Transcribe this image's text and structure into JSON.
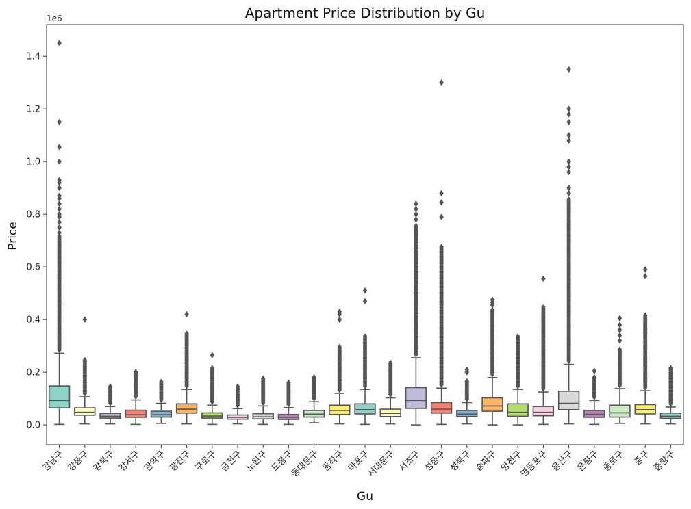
{
  "chart_data": {
    "type": "box",
    "title": "Apartment Price Distribution by Gu",
    "xlabel": "Gu",
    "ylabel": "Price",
    "y_offset_label": "1e6",
    "ylim": [
      -75000,
      1520000
    ],
    "yticks": [
      0,
      200000,
      400000,
      600000,
      800000,
      1000000,
      1200000,
      1400000
    ],
    "ytick_labels": [
      "0.0",
      "0.2",
      "0.4",
      "0.6",
      "0.8",
      "1.0",
      "1.2",
      "1.4"
    ],
    "grid": false,
    "categories": [
      "강남구",
      "강동구",
      "강북구",
      "강서구",
      "관악구",
      "광진구",
      "구로구",
      "금천구",
      "노원구",
      "도봉구",
      "동대문구",
      "동작구",
      "마포구",
      "서대문구",
      "서초구",
      "성동구",
      "성북구",
      "송파구",
      "양천구",
      "영등포구",
      "용산구",
      "은평구",
      "종로구",
      "중구",
      "중랑구"
    ],
    "series": [
      {
        "name": "강남구",
        "color": "#8dd3c7",
        "q1": 65000,
        "median": 93000,
        "q3": 148000,
        "whisker_low": 2000,
        "whisker_high": 272000,
        "outlier_range": [
          272000,
          720000
        ],
        "outliers": [
          730000,
          750000,
          770000,
          790000,
          800000,
          820000,
          840000,
          860000,
          870000,
          900000,
          920000,
          930000,
          1000000,
          1055000,
          1150000,
          1450000
        ]
      },
      {
        "name": "강동구",
        "color": "#ffffb3",
        "q1": 37000,
        "median": 48000,
        "q3": 65000,
        "whisker_low": 4000,
        "whisker_high": 107000,
        "outlier_range": [
          107000,
          250000
        ],
        "outliers": [
          400000
        ]
      },
      {
        "name": "강북구",
        "color": "#bebada",
        "q1": 26000,
        "median": 33000,
        "q3": 44000,
        "whisker_low": 4000,
        "whisker_high": 70000,
        "outlier_range": [
          70000,
          150000
        ],
        "outliers": []
      },
      {
        "name": "강서구",
        "color": "#fb8072",
        "q1": 29000,
        "median": 39000,
        "q3": 56000,
        "whisker_low": 2000,
        "whisker_high": 95000,
        "outlier_range": [
          95000,
          205000
        ],
        "outliers": []
      },
      {
        "name": "관악구",
        "color": "#80b1d3",
        "q1": 30000,
        "median": 39000,
        "q3": 52000,
        "whisker_low": 6000,
        "whisker_high": 82000,
        "outlier_range": [
          82000,
          168000
        ],
        "outliers": []
      },
      {
        "name": "광진구",
        "color": "#fdb462",
        "q1": 45000,
        "median": 60000,
        "q3": 80000,
        "whisker_low": 4000,
        "whisker_high": 135000,
        "outlier_range": [
          135000,
          350000
        ],
        "outliers": [
          420000
        ]
      },
      {
        "name": "구로구",
        "color": "#b3de69",
        "q1": 26000,
        "median": 34000,
        "q3": 46000,
        "whisker_low": 2000,
        "whisker_high": 75000,
        "outlier_range": [
          75000,
          220000
        ],
        "outliers": [
          265000
        ]
      },
      {
        "name": "금천구",
        "color": "#fccde5",
        "q1": 22000,
        "median": 29000,
        "q3": 38000,
        "whisker_low": 4000,
        "whisker_high": 62000,
        "outlier_range": [
          62000,
          150000
        ],
        "outliers": []
      },
      {
        "name": "노원구",
        "color": "#d9d9d9",
        "q1": 23000,
        "median": 31000,
        "q3": 43000,
        "whisker_low": 2000,
        "whisker_high": 72000,
        "outlier_range": [
          72000,
          180000
        ],
        "outliers": []
      },
      {
        "name": "도봉구",
        "color": "#bc80bd",
        "q1": 21000,
        "median": 29000,
        "q3": 40000,
        "whisker_low": 2000,
        "whisker_high": 66000,
        "outlier_range": [
          66000,
          165000
        ],
        "outliers": []
      },
      {
        "name": "동대문구",
        "color": "#ccebc5",
        "q1": 30000,
        "median": 41000,
        "q3": 55000,
        "whisker_low": 8000,
        "whisker_high": 88000,
        "outlier_range": [
          88000,
          185000
        ],
        "outliers": []
      },
      {
        "name": "동작구",
        "color": "#ffed6f",
        "q1": 40000,
        "median": 55000,
        "q3": 75000,
        "whisker_low": 4000,
        "whisker_high": 120000,
        "outlier_range": [
          120000,
          300000
        ],
        "outliers": [
          400000,
          420000,
          430000
        ]
      },
      {
        "name": "마포구",
        "color": "#8dd3c7",
        "q1": 42000,
        "median": 58000,
        "q3": 80000,
        "whisker_low": 2000,
        "whisker_high": 135000,
        "outlier_range": [
          135000,
          340000
        ],
        "outliers": [
          470000,
          510000
        ]
      },
      {
        "name": "서대문구",
        "color": "#ffffb3",
        "q1": 32000,
        "median": 44000,
        "q3": 60000,
        "whisker_low": 4000,
        "whisker_high": 103000,
        "outlier_range": [
          103000,
          240000
        ],
        "outliers": []
      },
      {
        "name": "서초구",
        "color": "#bebada",
        "q1": 63000,
        "median": 93000,
        "q3": 142000,
        "whisker_low": 0,
        "whisker_high": 255000,
        "outlier_range": [
          255000,
          760000
        ],
        "outliers": [
          780000,
          800000,
          820000,
          840000
        ]
      },
      {
        "name": "성동구",
        "color": "#fb8072",
        "q1": 45000,
        "median": 60000,
        "q3": 85000,
        "whisker_low": 2000,
        "whisker_high": 140000,
        "outlier_range": [
          140000,
          680000
        ],
        "outliers": [
          790000,
          845000,
          880000,
          1300000
        ]
      },
      {
        "name": "성북구",
        "color": "#80b1d3",
        "q1": 32000,
        "median": 41000,
        "q3": 55000,
        "whisker_low": 4000,
        "whisker_high": 85000,
        "outlier_range": [
          85000,
          170000
        ],
        "outliers": [
          200000,
          210000
        ]
      },
      {
        "name": "송파구",
        "color": "#fdb462",
        "q1": 52000,
        "median": 72000,
        "q3": 103000,
        "whisker_low": 0,
        "whisker_high": 180000,
        "outlier_range": [
          180000,
          440000
        ],
        "outliers": [
          455000,
          465000,
          475000
        ]
      },
      {
        "name": "양천구",
        "color": "#b3de69",
        "q1": 33000,
        "median": 48000,
        "q3": 80000,
        "whisker_low": 0,
        "whisker_high": 135000,
        "outlier_range": [
          135000,
          340000
        ],
        "outliers": []
      },
      {
        "name": "영등포구",
        "color": "#fccde5",
        "q1": 35000,
        "median": 48000,
        "q3": 70000,
        "whisker_low": 2000,
        "whisker_high": 125000,
        "outlier_range": [
          125000,
          450000
        ],
        "outliers": [
          555000
        ]
      },
      {
        "name": "용산구",
        "color": "#d9d9d9",
        "q1": 58000,
        "median": 82000,
        "q3": 128000,
        "whisker_low": 4000,
        "whisker_high": 230000,
        "outlier_range": [
          230000,
          860000
        ],
        "outliers": [
          880000,
          900000,
          960000,
          980000,
          1000000,
          1080000,
          1100000,
          1150000,
          1180000,
          1200000,
          1350000
        ]
      },
      {
        "name": "은평구",
        "color": "#bc80bd",
        "q1": 29000,
        "median": 40000,
        "q3": 55000,
        "whisker_low": 2000,
        "whisker_high": 93000,
        "outlier_range": [
          93000,
          185000
        ],
        "outliers": [
          205000
        ]
      },
      {
        "name": "종로구",
        "color": "#ccebc5",
        "q1": 30000,
        "median": 46000,
        "q3": 75000,
        "whisker_low": 6000,
        "whisker_high": 138000,
        "outlier_range": [
          138000,
          290000
        ],
        "outliers": [
          320000,
          340000,
          360000,
          380000,
          405000
        ]
      },
      {
        "name": "중구",
        "color": "#ffed6f",
        "q1": 42000,
        "median": 58000,
        "q3": 77000,
        "whisker_low": 4000,
        "whisker_high": 130000,
        "outlier_range": [
          130000,
          420000
        ],
        "outliers": [
          565000,
          590000
        ]
      },
      {
        "name": "중랑구",
        "color": "#8dd3c7",
        "q1": 25000,
        "median": 33000,
        "q3": 45000,
        "whisker_low": 4000,
        "whisker_high": 68000,
        "outlier_range": [
          68000,
          220000
        ],
        "outliers": []
      }
    ]
  }
}
